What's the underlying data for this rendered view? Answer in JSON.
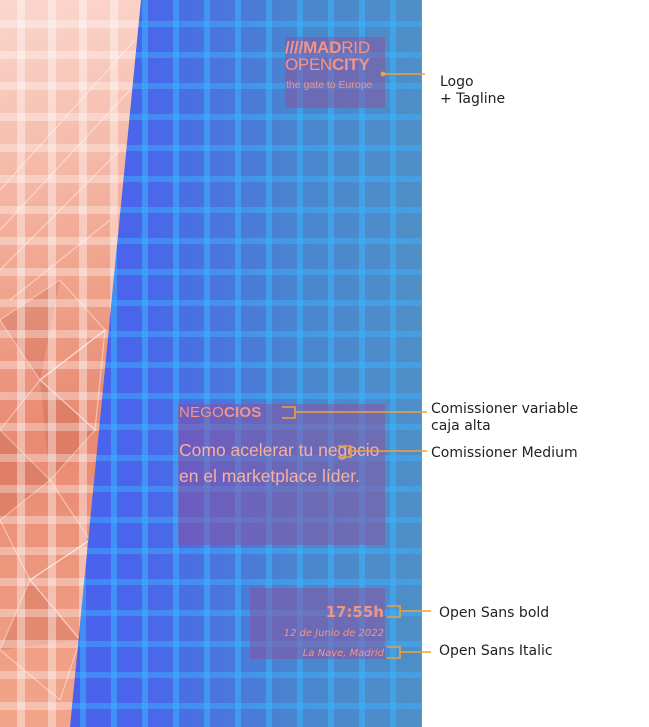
{
  "logo": {
    "bars": "////",
    "word1": "MAD",
    "word2": "RID",
    "word3": "OPEN",
    "word4": "CITY",
    "tagline": "the gate to Europe"
  },
  "card": {
    "eyebrow_light": "NEGO",
    "eyebrow_bold": "CIOS",
    "headline": "Como acelerar tu negocio en el marketplace líder."
  },
  "event": {
    "time": "17:55h",
    "date": "12 de Junio de 2022",
    "place": "La Nave, Madrid"
  },
  "annotations": {
    "logo_line1": "Logo",
    "logo_line2": "+ Tagline",
    "negocios_line1": "Comissioner variable",
    "negocios_line2": "caja alta",
    "headline": "Comissioner Medium",
    "time": "Open Sans bold",
    "date": "Open Sans Italic"
  },
  "colors": {
    "accent_pink": "#f39585",
    "leader_orange": "#f0a03c",
    "panel_blue": "#4a66ea",
    "grid_cyan": "#3ab4ff"
  }
}
